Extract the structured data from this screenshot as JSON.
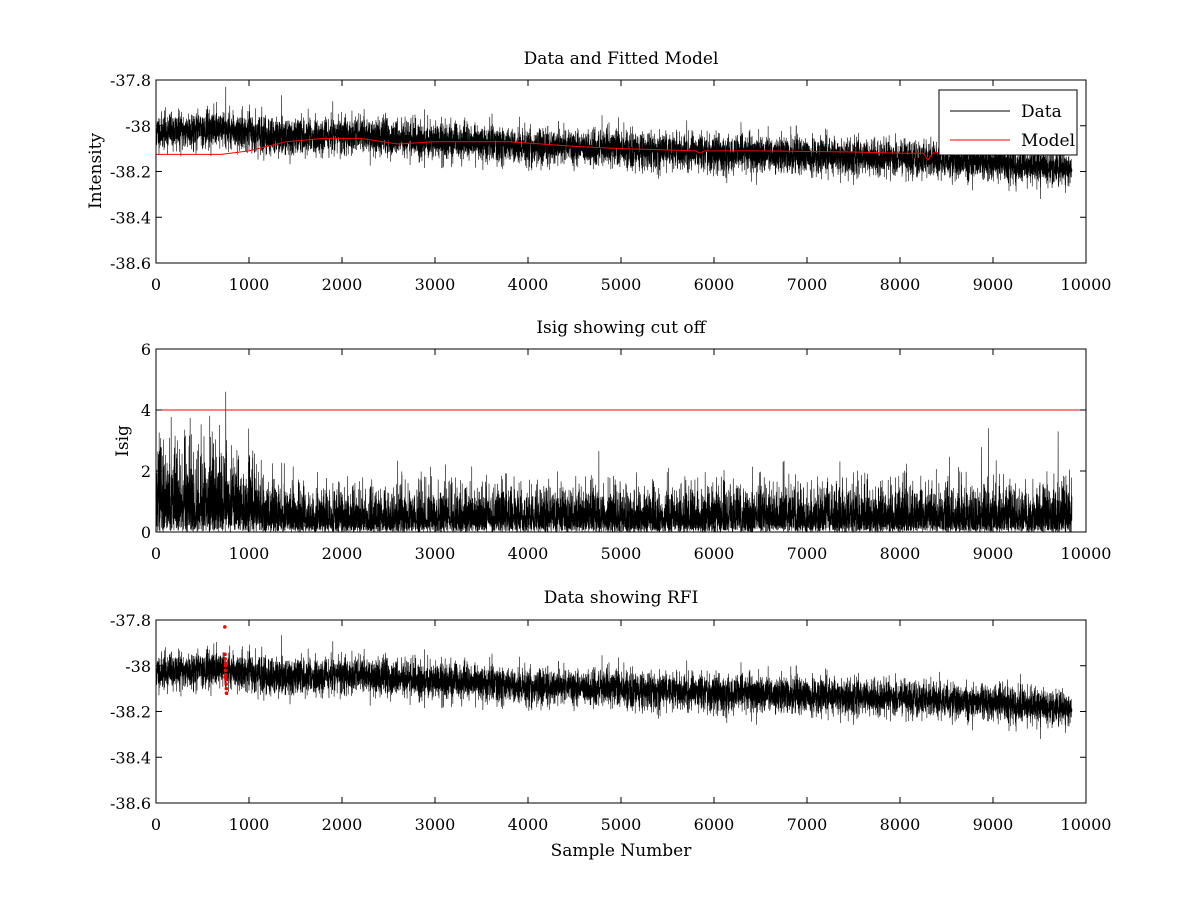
{
  "colors": {
    "data": "#000000",
    "model": "#ff0000",
    "cutoff": "#ff0000",
    "rfi": "#ff0000",
    "background": "#ffffff"
  },
  "xlabel": "Sample Number",
  "chart_data": [
    {
      "id": "top",
      "type": "line",
      "title": "Data and Fitted Model",
      "xlabel": "",
      "ylabel": "Intensity",
      "xlim": [
        0,
        10000
      ],
      "ylim": [
        -38.6,
        -37.8
      ],
      "xticks": [
        0,
        1000,
        2000,
        3000,
        4000,
        5000,
        6000,
        7000,
        8000,
        9000,
        10000
      ],
      "xtick_labels": [
        "0",
        "1000",
        "2000",
        "3000",
        "4000",
        "5000",
        "6000",
        "7000",
        "8000",
        "9000",
        "10000"
      ],
      "yticks": [
        -37.8,
        -38,
        -38.2,
        -38.4,
        -38.6
      ],
      "ytick_labels": [
        "-37.8",
        "-38",
        "-38.2",
        "-38.4",
        "-38.6"
      ],
      "legend": {
        "position": "top-right",
        "entries": [
          "Data",
          "Model"
        ]
      },
      "series": [
        {
          "name": "Data",
          "kind": "noise",
          "n_points": 9850,
          "seed": 11,
          "mean_trend": {
            "x": [
              0,
              700,
              1300,
              2000,
              2800,
              4000,
              5000,
              6000,
              7000,
              8000,
              9000,
              9850
            ],
            "y": [
              -38.03,
              -38.01,
              -38.05,
              -38.04,
              -38.06,
              -38.09,
              -38.1,
              -38.12,
              -38.13,
              -38.14,
              -38.16,
              -38.19
            ]
          },
          "noise_amplitude": 0.055,
          "spikes": [
            {
              "x": 750,
              "y": -37.83
            }
          ]
        },
        {
          "name": "Model",
          "kind": "line",
          "x": [
            0,
            700,
            1000,
            1400,
            1800,
            2200,
            2600,
            3000,
            3800,
            4500,
            5000,
            5800,
            5850,
            5900,
            6500,
            7500,
            8000,
            8250,
            8300,
            8350,
            8500,
            9000,
            9850
          ],
          "y": [
            -38.125,
            -38.125,
            -38.11,
            -38.07,
            -38.055,
            -38.055,
            -38.08,
            -38.07,
            -38.07,
            -38.09,
            -38.1,
            -38.11,
            -38.12,
            -38.11,
            -38.11,
            -38.115,
            -38.12,
            -38.12,
            -38.15,
            -38.12,
            -38.11,
            -38.12,
            -38.12
          ]
        }
      ]
    },
    {
      "id": "middle",
      "type": "line",
      "title": "Isig showing cut off",
      "xlabel": "",
      "ylabel": "Isig",
      "xlim": [
        0,
        10000
      ],
      "ylim": [
        0,
        6
      ],
      "xticks": [
        0,
        1000,
        2000,
        3000,
        4000,
        5000,
        6000,
        7000,
        8000,
        9000,
        10000
      ],
      "xtick_labels": [
        "0",
        "1000",
        "2000",
        "3000",
        "4000",
        "5000",
        "6000",
        "7000",
        "8000",
        "9000",
        "10000"
      ],
      "yticks": [
        0,
        2,
        4,
        6
      ],
      "ytick_labels": [
        "0",
        "2",
        "4",
        "6"
      ],
      "series": [
        {
          "name": "Isig",
          "kind": "abs-noise",
          "n_points": 9850,
          "seed": 23,
          "scale_trend": {
            "x": [
              0,
              600,
              900,
              1200,
              1500,
              9850
            ],
            "y": [
              1.2,
              1.3,
              1.2,
              0.8,
              0.65,
              0.7
            ]
          },
          "spikes": [
            {
              "x": 750,
              "y": 4.6
            },
            {
              "x": 8950,
              "y": 3.4
            },
            {
              "x": 9700,
              "y": 3.3
            }
          ]
        },
        {
          "name": "Cut off",
          "kind": "hline",
          "y": 4,
          "x": [
            0,
            10000
          ]
        }
      ]
    },
    {
      "id": "bottom",
      "type": "line",
      "title": "Data showing RFI",
      "xlabel": "Sample Number",
      "ylabel": "",
      "xlim": [
        0,
        10000
      ],
      "ylim": [
        -38.6,
        -37.8
      ],
      "xticks": [
        0,
        1000,
        2000,
        3000,
        4000,
        5000,
        6000,
        7000,
        8000,
        9000,
        10000
      ],
      "xtick_labels": [
        "0",
        "1000",
        "2000",
        "3000",
        "4000",
        "5000",
        "6000",
        "7000",
        "8000",
        "9000",
        "10000"
      ],
      "yticks": [
        -37.8,
        -38,
        -38.2,
        -38.4,
        -38.6
      ],
      "ytick_labels": [
        "-37.8",
        "-38",
        "-38.2",
        "-38.4",
        "-38.6"
      ],
      "series": [
        {
          "name": "Data",
          "kind": "noise",
          "n_points": 9850,
          "seed": 11,
          "mean_trend": {
            "x": [
              0,
              700,
              1300,
              2000,
              2800,
              4000,
              5000,
              6000,
              7000,
              8000,
              9000,
              9850
            ],
            "y": [
              -38.03,
              -38.01,
              -38.05,
              -38.04,
              -38.06,
              -38.09,
              -38.1,
              -38.12,
              -38.13,
              -38.14,
              -38.16,
              -38.19
            ]
          },
          "noise_amplitude": 0.055,
          "spikes": []
        },
        {
          "name": "RFI",
          "kind": "markers",
          "x": [
            740,
            742,
            744,
            746,
            748,
            750,
            752,
            754,
            756,
            758,
            745,
            749
          ],
          "y": [
            -37.83,
            -37.95,
            -37.97,
            -38.0,
            -38.02,
            -38.04,
            -38.06,
            -38.08,
            -38.1,
            -38.12,
            -38.05,
            -37.99
          ]
        }
      ]
    }
  ]
}
